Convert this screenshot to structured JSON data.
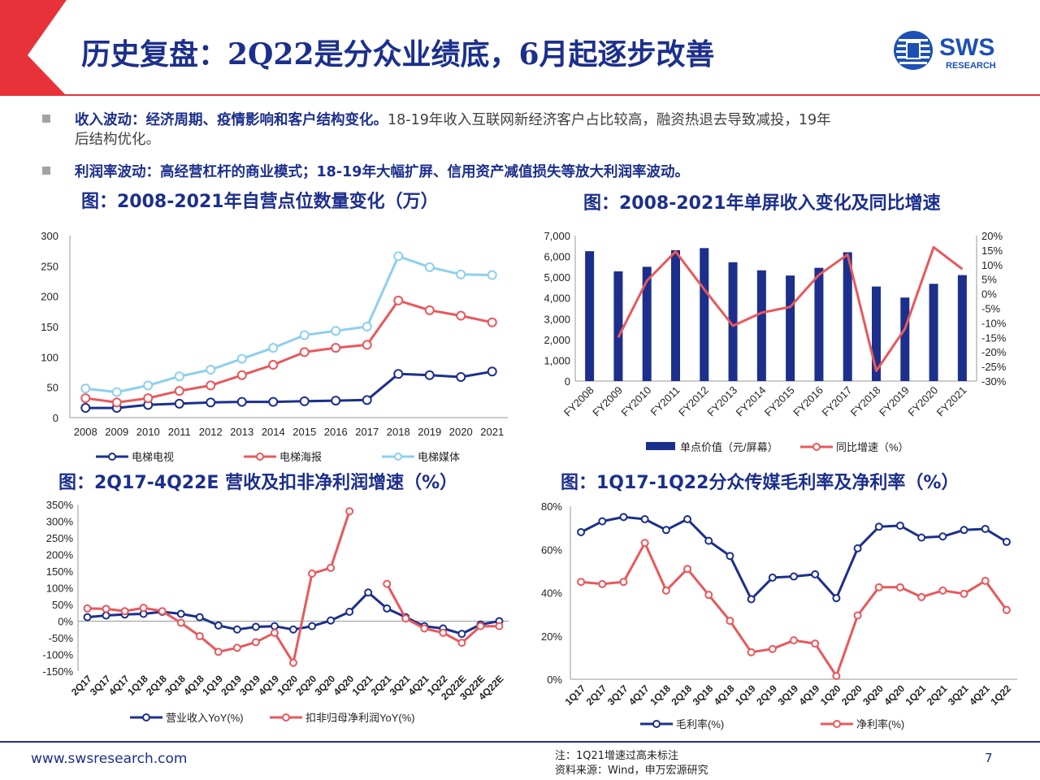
{
  "header": {
    "title": "历史复盘：2Q22是分众业绩底，6月起逐步改善",
    "logo_text": "SWS",
    "logo_sub": "RESEARCH",
    "accent_red": "#e8323a",
    "brand_blue": "#1c2f8c"
  },
  "bullets": [
    {
      "bold": "收入波动：经济周期、疫情影响和客户结构变化。",
      "text": "18-19年收入互联网新经济客户占比较高，融资热退去导致减投，19年",
      "cont": "后结构优化。"
    },
    {
      "bold": "利润率波动：高经营杠杆的商业模式；18-19年大幅扩屏、信用资产减值损失等放大利润率波动。",
      "text": "",
      "cont": ""
    }
  ],
  "chart_titles": [
    "图：2008-2021年自营点位数量变化（万）",
    "图：2008-2021年单屏收入变化及同比增速",
    "图：2Q17-4Q22E 营收及扣非净利润增速（%）",
    "图：1Q17-1Q22分众传媒毛利率及净利率（%）"
  ],
  "chart_data": [
    {
      "type": "line",
      "title": "图：2008-2021年自营点位数量变化（万）",
      "categories": [
        "2008",
        "2009",
        "2010",
        "2011",
        "2012",
        "2013",
        "2014",
        "2015",
        "2016",
        "2017",
        "2018",
        "2019",
        "2020",
        "2021"
      ],
      "ylim": [
        0,
        300
      ],
      "yticks": [
        "0",
        "50",
        "100",
        "150",
        "200",
        "250",
        "300"
      ],
      "legend_position": "bottom",
      "series": [
        {
          "name": "电梯电视",
          "color": "#1c2f8c",
          "values": [
            16,
            16,
            21,
            23,
            25,
            26,
            26,
            27,
            28,
            29,
            72,
            70,
            67,
            76
          ]
        },
        {
          "name": "电梯海报",
          "color": "#e8585c",
          "values": [
            32,
            25,
            32,
            44,
            53,
            70,
            87,
            108,
            115,
            120,
            193,
            177,
            168,
            157
          ]
        },
        {
          "name": "电梯媒体",
          "color": "#8ecfee",
          "values": [
            48,
            42,
            53,
            68,
            79,
            97,
            115,
            136,
            143,
            150,
            266,
            248,
            236,
            235
          ]
        }
      ]
    },
    {
      "type": "bar+line",
      "title": "图：2008-2021年单屏收入变化及同比增速",
      "categories": [
        "FY2008",
        "FY2009",
        "FY2010",
        "FY2011",
        "FY2012",
        "FY2013",
        "FY2014",
        "FY2015",
        "FY2016",
        "FY2017",
        "FY2018",
        "FY2019",
        "FY2020",
        "FY2021"
      ],
      "ylim": [
        0,
        7000
      ],
      "yticks": [
        "0",
        "1,000",
        "2,000",
        "3,000",
        "4,000",
        "5,000",
        "6,000",
        "7,000"
      ],
      "y2lim": [
        -30,
        20
      ],
      "y2ticks": [
        "-30%",
        "-25%",
        "-20%",
        "-15%",
        "-10%",
        "-5%",
        "0%",
        "5%",
        "10%",
        "15%",
        "20%"
      ],
      "legend_position": "bottom",
      "series": [
        {
          "name": "单点价值（元/屏幕）",
          "kind": "bar",
          "color": "#1c2f8c",
          "values": [
            6250,
            5280,
            5500,
            6300,
            6400,
            5720,
            5330,
            5080,
            5450,
            6200,
            4550,
            4020,
            4680,
            5100
          ]
        },
        {
          "name": "同比增速（%）",
          "kind": "line",
          "axis": "right",
          "color": "#e8585c",
          "values": [
            null,
            -15,
            4.5,
            14.5,
            1.5,
            -11,
            -6.5,
            -4.5,
            6.5,
            13.5,
            -26.5,
            -12,
            16,
            8.5
          ]
        }
      ]
    },
    {
      "type": "line",
      "title": "图：2Q17-4Q22E 营收及扣非净利润增速（%）",
      "categories": [
        "2Q17",
        "3Q17",
        "4Q17",
        "1Q18",
        "2Q18",
        "3Q18",
        "4Q18",
        "1Q19",
        "2Q19",
        "3Q19",
        "4Q19",
        "1Q20",
        "2Q20",
        "3Q20",
        "4Q20",
        "1Q21",
        "2Q21",
        "3Q21",
        "4Q21",
        "1Q22",
        "2Q22E",
        "3Q22E",
        "4Q22E"
      ],
      "ylim": [
        -150,
        350
      ],
      "yticks": [
        "-150%",
        "-100%",
        "-50%",
        "0%",
        "50%",
        "100%",
        "150%",
        "200%",
        "250%",
        "300%",
        "350%"
      ],
      "legend_position": "bottom",
      "series": [
        {
          "name": "营业收入YoY(%)",
          "color": "#1c2f8c",
          "values": [
            12,
            17,
            20,
            22,
            28,
            22,
            12,
            -13,
            -25,
            -17,
            -15,
            -25,
            -15,
            2,
            28,
            86,
            38,
            12,
            -15,
            -22,
            -38,
            -10,
            0
          ]
        },
        {
          "name": "扣非归母净利润YoY(%)",
          "color": "#e8585c",
          "values": [
            38,
            37,
            30,
            40,
            30,
            -5,
            -45,
            -92,
            -80,
            -63,
            -35,
            -125,
            143,
            160,
            330,
            null,
            112,
            8,
            -22,
            -35,
            -65,
            -15,
            -15
          ]
        }
      ]
    },
    {
      "type": "line",
      "title": "图：1Q17-1Q22分众传媒毛利率及净利率（%）",
      "categories": [
        "1Q17",
        "2Q17",
        "3Q17",
        "4Q17",
        "1Q18",
        "2Q18",
        "3Q18",
        "4Q18",
        "1Q19",
        "2Q19",
        "3Q19",
        "4Q19",
        "1Q20",
        "2Q20",
        "3Q20",
        "4Q20",
        "1Q21",
        "2Q21",
        "3Q21",
        "4Q21",
        "1Q22"
      ],
      "ylim": [
        0,
        80
      ],
      "yticks": [
        "0%",
        "20%",
        "40%",
        "60%",
        "80%"
      ],
      "legend_position": "bottom",
      "series": [
        {
          "name": "毛利率(%)",
          "color": "#1c2f8c",
          "values": [
            68,
            73,
            75,
            74,
            69,
            74,
            64,
            57,
            37,
            47,
            47.5,
            48.5,
            37.5,
            60.5,
            70.5,
            71,
            65.5,
            66,
            69,
            69.5,
            63.5
          ]
        },
        {
          "name": "净利率(%)",
          "color": "#e8585c",
          "values": [
            45,
            44,
            45,
            63,
            41,
            51,
            39,
            27,
            12.5,
            14,
            18,
            16.5,
            1.5,
            29.5,
            42.5,
            42.5,
            38,
            41,
            39.5,
            45.5,
            32
          ]
        }
      ]
    }
  ],
  "footer": {
    "url": "www.swsresearch.com",
    "note1": "注：1Q21增速过高未标注",
    "note2": "资料来源：Wind，申万宏源研究",
    "page": "7"
  }
}
